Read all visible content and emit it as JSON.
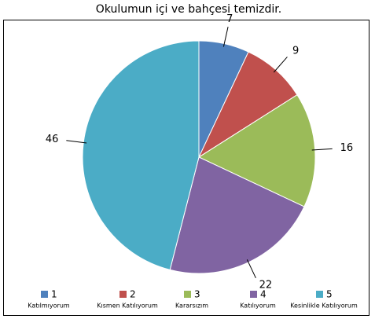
{
  "chart_data": {
    "type": "pie",
    "title": "Okulumun içi ve bahçesi temizdir.",
    "categories": [
      "1",
      "2",
      "3",
      "4",
      "5"
    ],
    "category_descriptions": [
      "Katılmıyorum",
      "Kısmen Katılıyorum",
      "Kararsızım",
      "Katılıyorum",
      "Kesinlikle Katılıyorum"
    ],
    "values": [
      7,
      9,
      16,
      22,
      46
    ],
    "colors": [
      "#4f81bd",
      "#c0504d",
      "#9bbb59",
      "#8064a2",
      "#4bacc6"
    ],
    "legend": "bottom"
  }
}
